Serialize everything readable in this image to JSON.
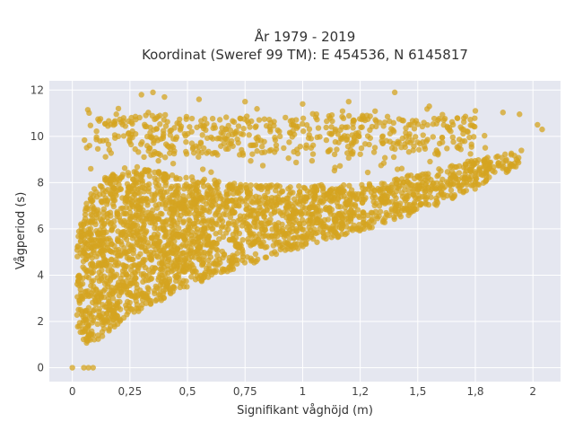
{
  "chart_data": {
    "type": "scatter",
    "title": "År 1979 - 2019",
    "subtitle": "Koordinat (Sweref 99 TM): E 454536, N 6145817",
    "xlabel": "Signifikant våghöjd (m)",
    "ylabel": "Vågperiod (s)",
    "xlim": [
      -0.1,
      2.12
    ],
    "ylim": [
      -0.6,
      12.4
    ],
    "x_ticks": [
      0,
      0.25,
      0.5,
      0.75,
      1,
      1.25,
      1.5,
      1.75,
      2
    ],
    "x_tick_labels": [
      "0",
      "0,25",
      "0,5",
      "0,75",
      "1",
      "1,2",
      "1,5",
      "1,8",
      "2"
    ],
    "y_ticks": [
      0,
      2,
      4,
      6,
      8,
      10,
      12
    ],
    "y_tick_labels": [
      "0",
      "2",
      "4",
      "6",
      "8",
      "10",
      "12"
    ],
    "grid": true,
    "legend": "none",
    "marker_color": "#D4A420",
    "plot_background": "#E5E7F0",
    "description_of_distribution": {
      "dense_region_polygon": [
        [
          0.02,
          1.1
        ],
        [
          0.08,
          1.0
        ],
        [
          0.25,
          2.2
        ],
        [
          0.5,
          3.5
        ],
        [
          0.75,
          4.4
        ],
        [
          1.0,
          5.2
        ],
        [
          1.25,
          5.9
        ],
        [
          1.5,
          6.7
        ],
        [
          1.75,
          7.7
        ],
        [
          1.95,
          8.7
        ],
        [
          1.95,
          9.4
        ],
        [
          1.75,
          9.0
        ],
        [
          1.5,
          8.4
        ],
        [
          1.25,
          7.9
        ],
        [
          1.0,
          7.9
        ],
        [
          0.75,
          7.9
        ],
        [
          0.5,
          8.3
        ],
        [
          0.3,
          8.6
        ],
        [
          0.15,
          8.3
        ],
        [
          0.06,
          7.4
        ],
        [
          0.02,
          5.5
        ]
      ],
      "upper_band": {
        "x_range": [
          0.1,
          1.75
        ],
        "y_range": [
          9.2,
          10.9
        ]
      },
      "sparse_outliers": [
        [
          0.3,
          11.8
        ],
        [
          0.35,
          11.9
        ],
        [
          0.4,
          11.7
        ],
        [
          0.55,
          11.6
        ],
        [
          0.75,
          11.5
        ],
        [
          1.0,
          11.4
        ],
        [
          1.2,
          11.5
        ],
        [
          1.4,
          11.9
        ],
        [
          1.55,
          11.3
        ],
        [
          1.75,
          11.1
        ],
        [
          2.02,
          10.5
        ],
        [
          2.04,
          10.3
        ],
        [
          0.08,
          8.6
        ],
        [
          0.12,
          9.8
        ],
        [
          0.2,
          11.2
        ]
      ],
      "zero_points": [
        [
          0.0,
          0.0
        ],
        [
          0.05,
          0.0
        ],
        [
          0.07,
          0.0
        ],
        [
          0.09,
          0.0
        ]
      ]
    }
  }
}
